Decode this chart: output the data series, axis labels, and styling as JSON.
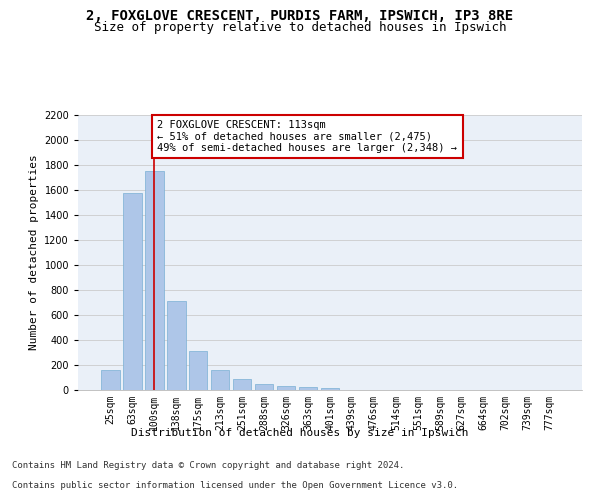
{
  "title_line1": "2, FOXGLOVE CRESCENT, PURDIS FARM, IPSWICH, IP3 8RE",
  "title_line2": "Size of property relative to detached houses in Ipswich",
  "xlabel": "Distribution of detached houses by size in Ipswich",
  "ylabel": "Number of detached properties",
  "categories": [
    "25sqm",
    "63sqm",
    "100sqm",
    "138sqm",
    "175sqm",
    "213sqm",
    "251sqm",
    "288sqm",
    "326sqm",
    "363sqm",
    "401sqm",
    "439sqm",
    "476sqm",
    "514sqm",
    "551sqm",
    "589sqm",
    "627sqm",
    "664sqm",
    "702sqm",
    "739sqm",
    "777sqm"
  ],
  "values": [
    160,
    1580,
    1755,
    710,
    315,
    160,
    85,
    50,
    30,
    25,
    20,
    0,
    0,
    0,
    0,
    0,
    0,
    0,
    0,
    0,
    0
  ],
  "bar_color": "#aec6e8",
  "bar_edge_color": "#7ab0d4",
  "vline_x_index": 2,
  "vline_color": "#cc0000",
  "annotation_text": "2 FOXGLOVE CRESCENT: 113sqm\n← 51% of detached houses are smaller (2,475)\n49% of semi-detached houses are larger (2,348) →",
  "annotation_box_color": "#ffffff",
  "annotation_box_edge_color": "#cc0000",
  "ylim": [
    0,
    2200
  ],
  "yticks": [
    0,
    200,
    400,
    600,
    800,
    1000,
    1200,
    1400,
    1600,
    1800,
    2000,
    2200
  ],
  "grid_color": "#cccccc",
  "bg_color": "#eaf0f8",
  "footer_line1": "Contains HM Land Registry data © Crown copyright and database right 2024.",
  "footer_line2": "Contains public sector information licensed under the Open Government Licence v3.0.",
  "title_fontsize": 10,
  "subtitle_fontsize": 9,
  "axis_label_fontsize": 8,
  "tick_fontsize": 7,
  "annotation_fontsize": 7.5,
  "footer_fontsize": 6.5
}
